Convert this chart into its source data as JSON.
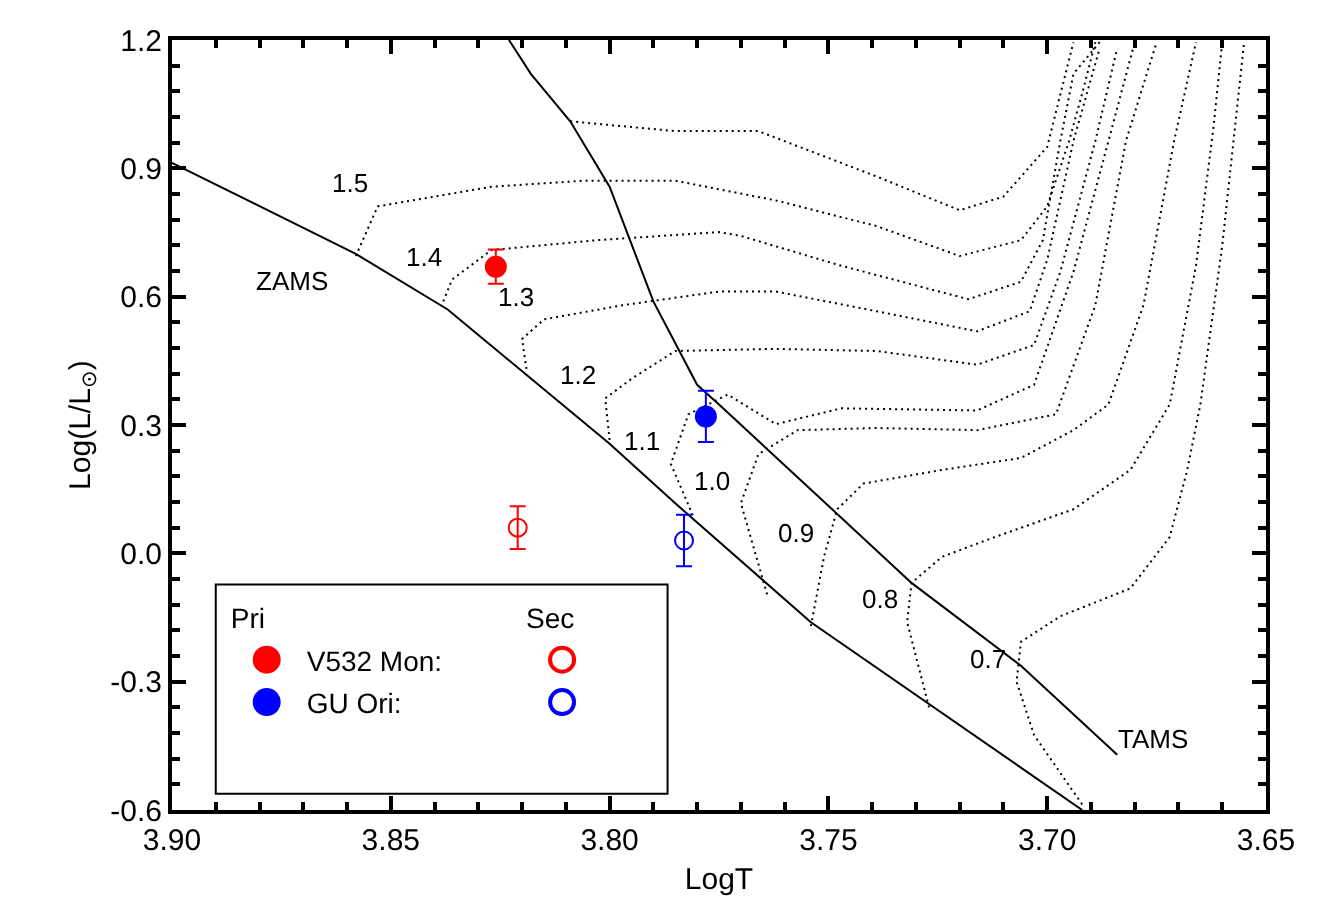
{
  "chart_data": {
    "type": "line",
    "xlabel": "LogT",
    "ylabel": "Log(L/L$_{⊙}$)",
    "xlim": [
      3.9,
      3.65
    ],
    "xticks": [
      {
        "value": 3.9,
        "label": "3.90"
      },
      3.85,
      {
        "value": 3.8,
        "label": "3.80"
      },
      3.75,
      {
        "value": 3.7,
        "label": "3.70"
      },
      3.65
    ],
    "ylim": [
      -0.6,
      1.2
    ],
    "yticks": [
      -0.6,
      -0.3,
      {
        "value": 0.0,
        "label": "0.0"
      },
      0.3,
      0.6,
      0.9,
      1.2
    ],
    "legend": "bottom left",
    "line_style": "dotted",
    "series": [
      {
        "color": "#000000",
        "line_style": "solid",
        "x": [
          3.9,
          3.858,
          3.837,
          3.8,
          3.785,
          3.754,
          3.692
        ],
        "values": [
          0.913,
          0.7,
          0.57,
          0.256,
          0.117,
          -0.161,
          -0.6
        ]
      },
      {
        "name": "TAMS",
        "color": "#000000",
        "line_style": "solid",
        "x": [
          3.823,
          3.818,
          3.809,
          3.8,
          3.79,
          3.78,
          3.775,
          3.731,
          3.706,
          3.684
        ],
        "values": [
          1.2,
          1.121,
          1.01,
          0.857,
          0.589,
          0.394,
          0.348,
          -0.069,
          -0.263,
          -0.471
        ]
      },
      {
        "color": "#000000",
        "x": [
          3.809,
          3.785,
          3.766,
          3.739,
          3.72,
          3.71,
          3.7,
          3.694
        ],
        "values": [
          1.01,
          0.987,
          0.987,
          0.881,
          0.802,
          0.834,
          0.95,
          1.195
        ]
      },
      {
        "color": "#000000",
        "x": [
          3.858,
          3.853,
          3.827,
          3.806,
          3.785,
          3.762,
          3.739,
          3.72,
          3.706,
          3.7,
          3.695,
          3.692,
          3.689
        ],
        "values": [
          0.695,
          0.811,
          0.857,
          0.871,
          0.871,
          0.825,
          0.765,
          0.695,
          0.732,
          0.811,
          0.964,
          1.075,
          1.195
        ]
      },
      {
        "color": "#000000",
        "x": [
          3.838,
          3.836,
          3.827,
          3.803,
          3.775,
          3.77,
          3.747,
          3.718,
          3.706,
          3.701,
          3.697,
          3.694,
          3.688
        ],
        "values": [
          0.589,
          0.64,
          0.709,
          0.732,
          0.751,
          0.742,
          0.672,
          0.594,
          0.635,
          0.732,
          0.964,
          1.121,
          1.195
        ]
      },
      {
        "color": "#000000",
        "x": [
          3.819,
          3.82,
          3.815,
          3.797,
          3.775,
          3.762,
          3.739,
          3.716,
          3.704,
          3.7,
          3.694,
          3.688
        ],
        "values": [
          0.431,
          0.501,
          0.547,
          0.58,
          0.612,
          0.612,
          0.566,
          0.519,
          0.566,
          0.686,
          0.964,
          1.181
        ]
      },
      {
        "color": "#000000",
        "x": [
          3.8,
          3.801,
          3.795,
          3.785,
          3.762,
          3.739,
          3.716,
          3.703,
          3.697,
          3.689,
          3.684
        ],
        "values": [
          0.265,
          0.362,
          0.408,
          0.473,
          0.478,
          0.473,
          0.441,
          0.487,
          0.658,
          0.964,
          1.181
        ]
      },
      {
        "color": "#000000",
        "x": [
          3.781,
          3.786,
          3.782,
          3.773,
          3.762,
          3.747,
          3.716,
          3.703,
          3.694,
          3.686,
          3.68
        ],
        "values": [
          0.089,
          0.209,
          0.325,
          0.371,
          0.302,
          0.339,
          0.334,
          0.394,
          0.658,
          0.964,
          1.195
        ]
      },
      {
        "color": "#000000",
        "x": [
          3.764,
          3.77,
          3.766,
          3.757,
          3.739,
          3.716,
          3.698,
          3.689,
          3.682,
          3.675
        ],
        "values": [
          -0.096,
          0.117,
          0.232,
          0.288,
          0.293,
          0.288,
          0.325,
          0.58,
          0.964,
          1.195
        ]
      },
      {
        "color": "#000000",
        "x": [
          3.754,
          3.751,
          3.748,
          3.742,
          3.724,
          3.706,
          3.694,
          3.686,
          3.678,
          3.671,
          3.666
        ],
        "values": [
          -0.17,
          -0.008,
          0.103,
          0.163,
          0.195,
          0.223,
          0.288,
          0.348,
          0.58,
          0.964,
          1.195
        ]
      },
      {
        "color": "#000000",
        "x": [
          3.727,
          3.732,
          3.731,
          3.724,
          3.712,
          3.694,
          3.681,
          3.672,
          3.666,
          3.662,
          3.66
        ],
        "values": [
          -0.36,
          -0.161,
          -0.069,
          -0.008,
          0.038,
          0.103,
          0.195,
          0.348,
          0.672,
          0.996,
          1.195
        ]
      },
      {
        "color": "#000000",
        "x": [
          3.692,
          3.703,
          3.707,
          3.706,
          3.697,
          3.681,
          3.672,
          3.668,
          3.665,
          3.66,
          3.655
        ],
        "values": [
          -0.587,
          -0.425,
          -0.3,
          -0.207,
          -0.147,
          -0.082,
          0.038,
          0.195,
          0.348,
          0.719,
          1.195
        ]
      },
      {
        "type": "scatter",
        "name": "V532 Mon:",
        "color": "#ff0000",
        "x": [
          3.826
        ],
        "values": [
          0.67
        ],
        "errors": [
          0.04
        ]
      },
      {
        "type": "scatter",
        "color": "#ff0000",
        "x": [
          3.821
        ],
        "values": [
          0.06
        ],
        "errors": [
          0.05
        ]
      },
      {
        "type": "scatter",
        "name": "GU Ori:",
        "color": "#0000ff",
        "x": [
          3.778
        ],
        "values": [
          0.32
        ],
        "errors": [
          0.06
        ]
      },
      {
        "type": "scatter",
        "color": "#0000ff",
        "x": [
          3.783
        ],
        "values": [
          0.03
        ],
        "errors": [
          0.06
        ]
      }
    ],
    "annotations": [
      {
        "text": "ZAMS",
        "x": 3.858,
        "y": 0.7
      },
      {
        "text": "1.5",
        "x": 3.853,
        "y": 0.811
      },
      {
        "text": "1.4",
        "x": 3.836,
        "y": 0.64
      },
      {
        "text": "1.3",
        "x": 3.815,
        "y": 0.547
      },
      {
        "text": "1.2",
        "x": 3.801,
        "y": 0.362
      },
      {
        "text": "1.1",
        "x": 3.786,
        "y": 0.209
      },
      {
        "text": "1.0",
        "x": 3.77,
        "y": 0.117
      },
      {
        "text": "0.9",
        "x": 3.751,
        "y": -0.008
      },
      {
        "text": "0.8",
        "x": 3.732,
        "y": -0.161
      },
      {
        "text": "0.7",
        "x": 3.707,
        "y": -0.3
      },
      "Pri",
      "Sec"
    ]
  }
}
